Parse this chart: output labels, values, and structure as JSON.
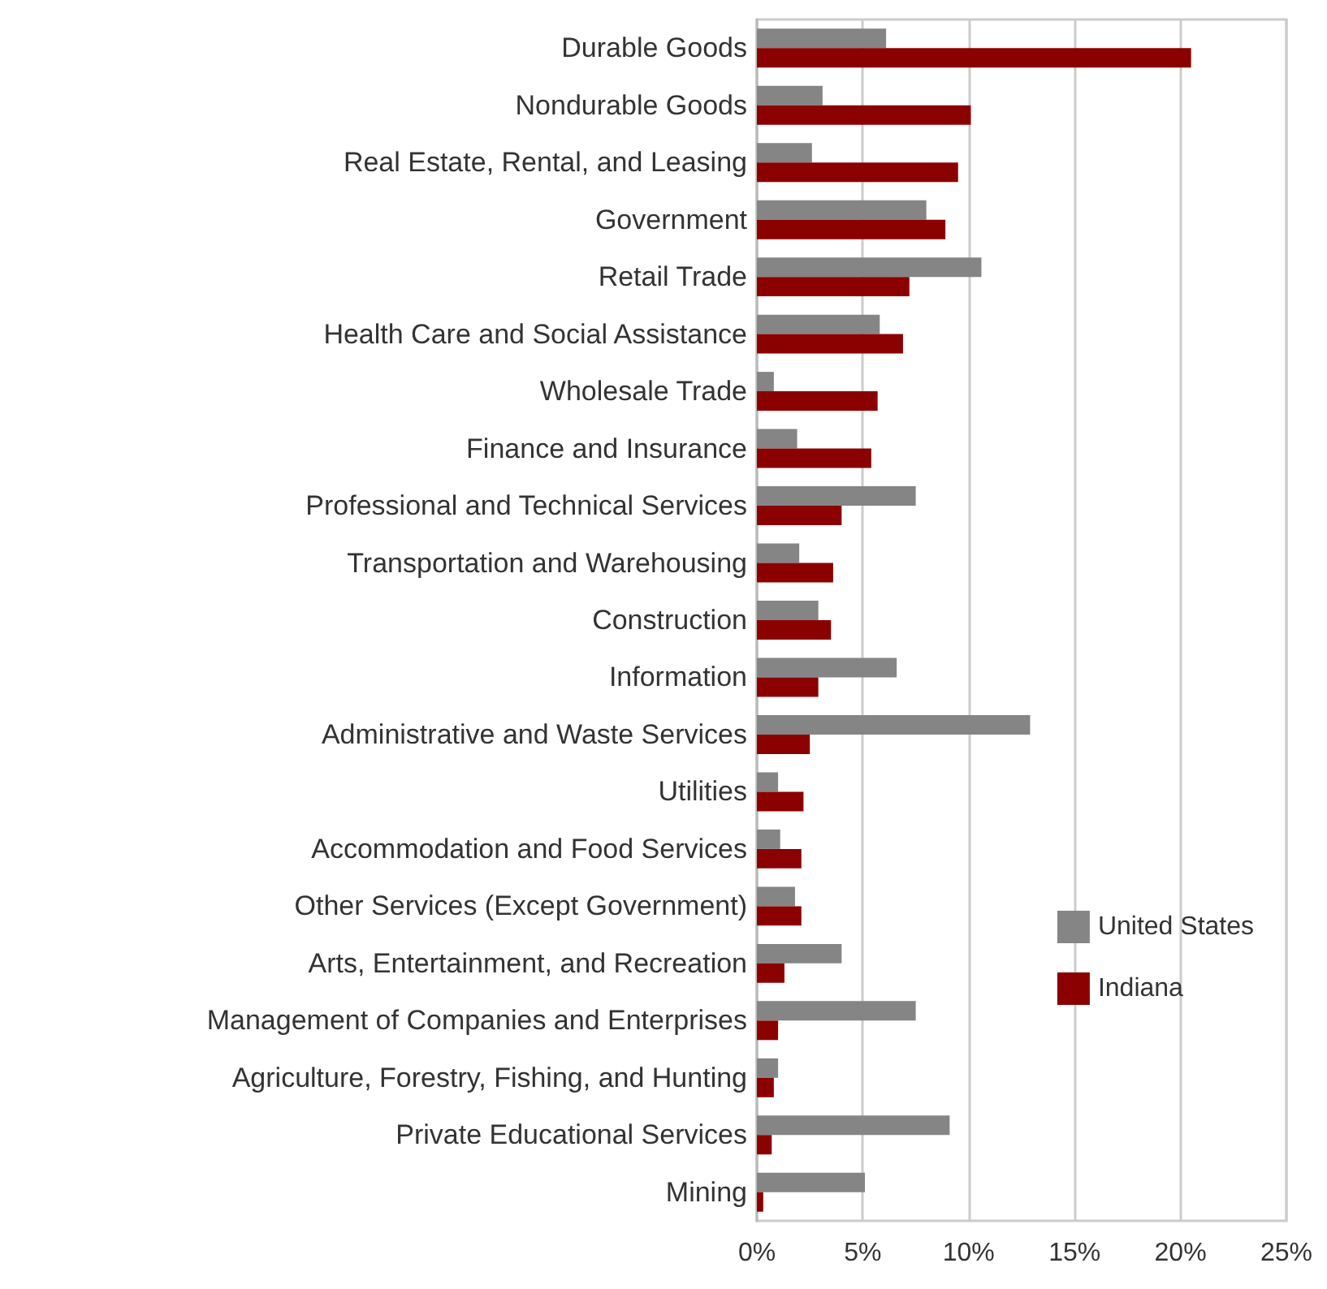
{
  "chart_data": {
    "type": "bar",
    "orientation": "horizontal",
    "categories": [
      "Durable Goods",
      "Nondurable Goods",
      "Real Estate, Rental, and Leasing",
      "Government",
      "Retail Trade",
      "Health Care and Social Assistance",
      "Wholesale Trade",
      "Finance and Insurance",
      "Professional and Technical Services",
      "Transportation and Warehousing",
      "Construction",
      "Information",
      "Administrative and Waste Services",
      "Utilities",
      "Accommodation and Food Services",
      "Other Services (Except Government)",
      "Arts, Entertainment, and Recreation",
      "Management of Companies and Enterprises",
      "Agriculture, Forestry, Fishing, and Hunting",
      "Private Educational Services",
      "Mining"
    ],
    "series": [
      {
        "name": "United States",
        "color": "#858585",
        "values": [
          6.1,
          3.1,
          2.6,
          8.0,
          10.6,
          5.8,
          0.8,
          1.9,
          7.5,
          2.0,
          2.9,
          6.6,
          12.9,
          1.0,
          1.1,
          1.8,
          4.0,
          7.5,
          1.0,
          9.1,
          5.1
        ]
      },
      {
        "name": "Indiana",
        "color": "#8b0000",
        "values": [
          20.5,
          10.1,
          9.5,
          8.9,
          7.2,
          6.9,
          5.7,
          5.4,
          4.0,
          3.6,
          3.5,
          2.9,
          2.5,
          2.2,
          2.1,
          2.1,
          1.3,
          1.0,
          0.8,
          0.7,
          0.3
        ]
      }
    ],
    "xlim": [
      0,
      25
    ],
    "xticks": [
      {
        "value": 0,
        "label": "0%"
      },
      {
        "value": 5,
        "label": "5%"
      },
      {
        "value": 10,
        "label": "10%"
      },
      {
        "value": 15,
        "label": "15%"
      },
      {
        "value": 20,
        "label": "20%"
      },
      {
        "value": 25,
        "label": "25%"
      }
    ],
    "grid": "x",
    "legend": "bottom right"
  }
}
